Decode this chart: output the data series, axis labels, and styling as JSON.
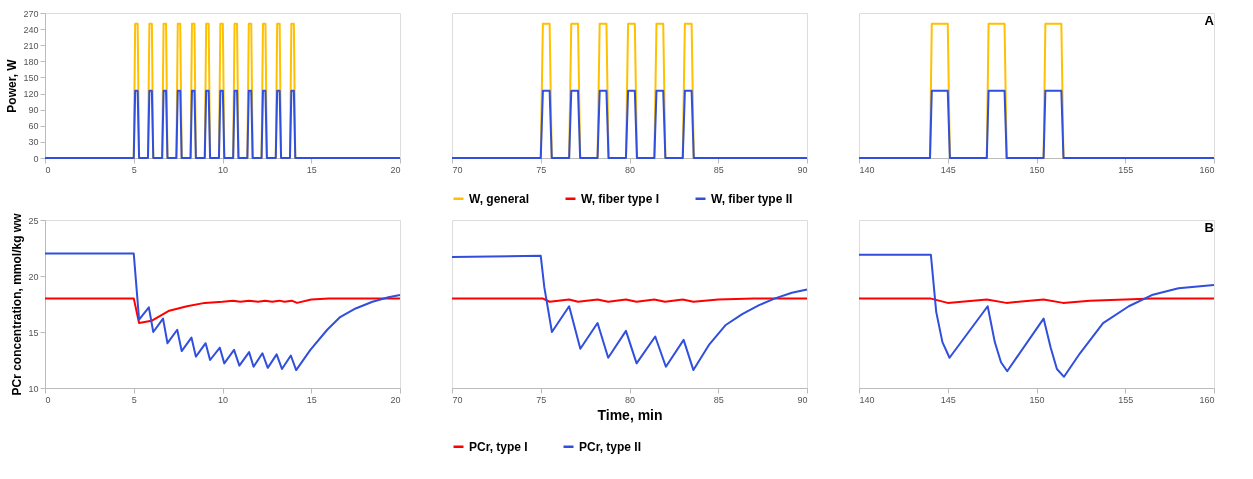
{
  "chart_data": [
    {
      "type": "line",
      "ylabel": "Power, W",
      "xlim": [
        0,
        20
      ],
      "xticks": [
        0,
        5,
        10,
        15,
        20
      ],
      "ylim": [
        0,
        270
      ],
      "yticks": [
        0,
        30,
        60,
        90,
        120,
        150,
        180,
        210,
        240,
        270
      ],
      "x": [
        0,
        5.0,
        5.08,
        5.22,
        5.3,
        5.8,
        5.88,
        6.02,
        6.1,
        6.6,
        6.68,
        6.82,
        6.9,
        7.4,
        7.48,
        7.62,
        7.7,
        8.2,
        8.28,
        8.42,
        8.5,
        9.0,
        9.08,
        9.22,
        9.3,
        9.8,
        9.88,
        10.02,
        10.1,
        10.6,
        10.68,
        10.82,
        10.9,
        11.4,
        11.48,
        11.62,
        11.7,
        12.2,
        12.28,
        12.42,
        12.5,
        13.0,
        13.08,
        13.22,
        13.3,
        13.8,
        13.88,
        14.02,
        14.1,
        20
      ],
      "series": [
        {
          "color": "#ffc000",
          "values": [
            0,
            0,
            250,
            250,
            0,
            0,
            250,
            250,
            0,
            0,
            250,
            250,
            0,
            0,
            250,
            250,
            0,
            0,
            250,
            250,
            0,
            0,
            250,
            250,
            0,
            0,
            250,
            250,
            0,
            0,
            250,
            250,
            0,
            0,
            250,
            250,
            0,
            0,
            250,
            250,
            0,
            0,
            250,
            250,
            0,
            0,
            250,
            250,
            0,
            0
          ]
        },
        {
          "color": "#2f4fdc",
          "values": [
            0,
            0,
            125,
            125,
            0,
            0,
            125,
            125,
            0,
            0,
            125,
            125,
            0,
            0,
            125,
            125,
            0,
            0,
            125,
            125,
            0,
            0,
            125,
            125,
            0,
            0,
            125,
            125,
            0,
            0,
            125,
            125,
            0,
            0,
            125,
            125,
            0,
            0,
            125,
            125,
            0,
            0,
            125,
            125,
            0,
            0,
            125,
            125,
            0,
            0
          ]
        }
      ]
    },
    {
      "type": "line",
      "xlim": [
        70,
        90
      ],
      "xticks": [
        70,
        75,
        80,
        85,
        90
      ],
      "ylim": [
        0,
        270
      ],
      "tick_labels": "x",
      "legend": "bottom",
      "x": [
        70,
        75.0,
        75.12,
        75.5,
        75.62,
        76.6,
        76.72,
        77.1,
        77.22,
        78.2,
        78.32,
        78.7,
        78.82,
        79.8,
        79.92,
        80.3,
        80.42,
        81.4,
        81.52,
        81.9,
        82.02,
        83.0,
        83.12,
        83.5,
        83.62,
        90
      ],
      "series": [
        {
          "name": "W, general",
          "color": "#ffc000",
          "values": [
            0,
            0,
            250,
            250,
            0,
            0,
            250,
            250,
            0,
            0,
            250,
            250,
            0,
            0,
            250,
            250,
            0,
            0,
            250,
            250,
            0,
            0,
            250,
            250,
            0,
            0
          ]
        },
        {
          "name": "W, fiber type I",
          "color": "#ff0000",
          "values": [
            null,
            null,
            null,
            null,
            null,
            null,
            null,
            null,
            null,
            null,
            null,
            null,
            null,
            null,
            null,
            null,
            null,
            null,
            null,
            null,
            null,
            null,
            null,
            null,
            null,
            null
          ]
        },
        {
          "name": "W, fiber type II",
          "color": "#2f4fdc",
          "values": [
            0,
            0,
            125,
            125,
            0,
            0,
            125,
            125,
            0,
            0,
            125,
            125,
            0,
            0,
            125,
            125,
            0,
            0,
            125,
            125,
            0,
            0,
            125,
            125,
            0,
            0
          ]
        }
      ]
    },
    {
      "type": "line",
      "xlim": [
        140,
        160
      ],
      "xticks": [
        140,
        145,
        150,
        155,
        160
      ],
      "ylim": [
        0,
        270
      ],
      "tick_labels": "x",
      "annotations": [
        "A"
      ],
      "x": [
        140,
        144.0,
        144.1,
        145.0,
        145.12,
        147.2,
        147.3,
        148.2,
        148.32,
        150.4,
        150.5,
        151.4,
        151.52,
        160
      ],
      "series": [
        {
          "color": "#ffc000",
          "values": [
            0,
            0,
            250,
            250,
            0,
            0,
            250,
            250,
            0,
            0,
            250,
            250,
            0,
            0
          ]
        },
        {
          "color": "#2f4fdc",
          "values": [
            0,
            0,
            125,
            125,
            0,
            0,
            125,
            125,
            0,
            0,
            125,
            125,
            0,
            0
          ]
        }
      ]
    },
    {
      "type": "line",
      "ylabel": "PCr concentration, mmol/kg ww",
      "xlim": [
        0,
        20
      ],
      "xticks": [
        0,
        5,
        10,
        15,
        20
      ],
      "ylim": [
        10,
        25
      ],
      "yticks": [
        10,
        15,
        20,
        25
      ],
      "series": [
        {
          "color": "#ff0000",
          "x": [
            0,
            5.0,
            5.3,
            6.0,
            7.0,
            8.0,
            9.0,
            10.0,
            10.6,
            11.0,
            11.5,
            12.0,
            12.4,
            12.8,
            13.2,
            13.5,
            13.9,
            14.2,
            15.0,
            16.0,
            17.0,
            20
          ],
          "values": [
            18,
            18,
            15.8,
            16.0,
            16.9,
            17.3,
            17.6,
            17.7,
            17.8,
            17.7,
            17.8,
            17.7,
            17.8,
            17.7,
            17.8,
            17.7,
            17.8,
            17.6,
            17.9,
            18.0,
            18,
            18
          ]
        },
        {
          "color": "#2f4fdc",
          "x": [
            0,
            5.0,
            5.3,
            5.85,
            6.1,
            6.65,
            6.9,
            7.45,
            7.7,
            8.25,
            8.5,
            9.05,
            9.3,
            9.85,
            10.1,
            10.65,
            10.95,
            11.5,
            11.75,
            12.25,
            12.55,
            13.05,
            13.35,
            13.85,
            14.15,
            14.95,
            15.9,
            16.6,
            17.5,
            18.45,
            19.35,
            20
          ],
          "values": [
            22,
            22,
            16.1,
            17.2,
            15.0,
            16.2,
            14.0,
            15.2,
            13.3,
            14.5,
            12.8,
            14.0,
            12.5,
            13.6,
            12.2,
            13.4,
            12.0,
            13.2,
            11.9,
            13.1,
            11.8,
            13.0,
            11.7,
            12.9,
            11.6,
            13.4,
            15.2,
            16.3,
            17.1,
            17.7,
            18.1,
            18.3
          ]
        }
      ]
    },
    {
      "type": "line",
      "xlabel": "Time, min",
      "xlim": [
        70,
        90
      ],
      "xticks": [
        70,
        75,
        80,
        85,
        90
      ],
      "ylim": [
        10,
        25
      ],
      "tick_labels": "x",
      "legend": "bottom",
      "series": [
        {
          "name": "PCr, type I",
          "color": "#ff0000",
          "x": [
            70,
            75.1,
            75.5,
            76.6,
            77.1,
            78.2,
            78.8,
            79.8,
            80.4,
            81.4,
            82.0,
            83.0,
            83.6,
            85.0,
            87.0,
            90
          ],
          "values": [
            18,
            18,
            17.7,
            17.9,
            17.7,
            17.9,
            17.7,
            17.9,
            17.7,
            17.9,
            17.7,
            17.9,
            17.7,
            17.9,
            18,
            18
          ]
        },
        {
          "name": "PCr, type II",
          "color": "#2f4fdc",
          "x": [
            70,
            75.0,
            75.2,
            75.63,
            76.6,
            77.23,
            78.2,
            78.8,
            79.8,
            80.4,
            81.45,
            82.05,
            83.05,
            83.6,
            84.5,
            85.4,
            86.35,
            87.3,
            88.2,
            89.15,
            90
          ],
          "values": [
            21.7,
            21.8,
            19.0,
            15.0,
            17.3,
            13.5,
            15.8,
            12.7,
            15.1,
            12.2,
            14.6,
            11.9,
            14.3,
            11.6,
            13.9,
            15.6,
            16.6,
            17.4,
            18.0,
            18.5,
            18.8
          ]
        }
      ]
    },
    {
      "type": "line",
      "xlim": [
        140,
        160
      ],
      "xticks": [
        140,
        145,
        150,
        155,
        160
      ],
      "ylim": [
        10,
        25
      ],
      "tick_labels": "x",
      "annotations": [
        "B"
      ],
      "series": [
        {
          "color": "#ff0000",
          "x": [
            140,
            144.0,
            145.0,
            147.2,
            148.3,
            150.4,
            151.5,
            153.0,
            155.0,
            156.5,
            160
          ],
          "values": [
            18,
            18,
            17.6,
            17.9,
            17.6,
            17.9,
            17.6,
            17.8,
            17.9,
            18,
            18
          ]
        },
        {
          "color": "#2f4fdc",
          "x": [
            140,
            144.05,
            144.35,
            144.7,
            145.1,
            147.25,
            147.65,
            148.0,
            148.35,
            150.4,
            150.8,
            151.15,
            151.55,
            152.45,
            153.75,
            155.2,
            156.5,
            158.0,
            160
          ],
          "values": [
            21.9,
            21.9,
            16.8,
            14.1,
            12.7,
            17.3,
            14.1,
            12.3,
            11.5,
            16.2,
            13.6,
            11.7,
            11.0,
            13.1,
            15.8,
            17.3,
            18.3,
            18.9,
            19.2
          ]
        }
      ]
    }
  ]
}
